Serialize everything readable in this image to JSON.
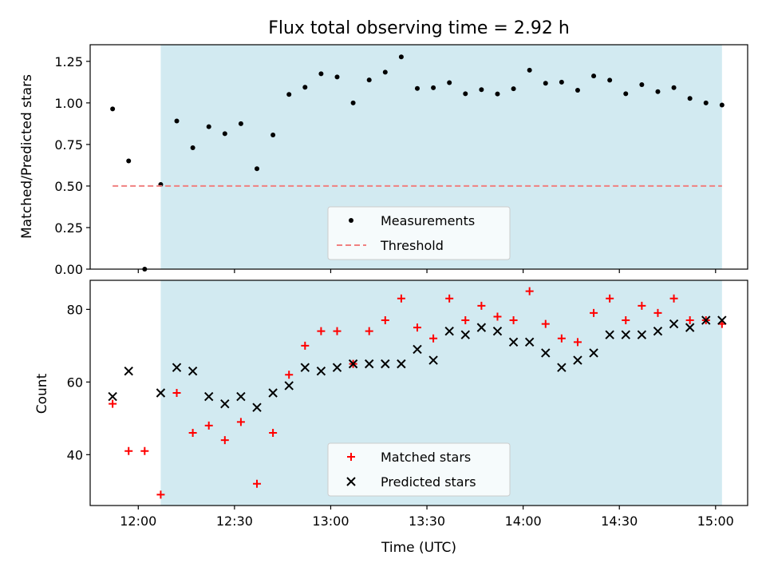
{
  "chart_data": [
    {
      "type": "scatter",
      "title": "Flux total observing time = 2.92 h",
      "ylabel": "Matched/Predicted stars",
      "xlabel": "",
      "ylim": [
        0,
        1.35
      ],
      "yticks": [
        0,
        0.25,
        0.5,
        0.75,
        1.0,
        1.25
      ],
      "ytick_labels": [
        "0.00",
        "0.25",
        "0.50",
        "0.75",
        "1.00",
        "1.25"
      ],
      "shaded_region": {
        "start": "12:07",
        "end": "15:02",
        "color": "#add8e6"
      },
      "legend_position": "bottom-center",
      "series": [
        {
          "name": "Measurements",
          "color": "#000000",
          "marker": "dot",
          "x": [
            "11:52",
            "11:57",
            "12:02",
            "12:07",
            "12:12",
            "12:17",
            "12:22",
            "12:27",
            "12:32",
            "12:37",
            "12:42",
            "12:47",
            "12:52",
            "12:57",
            "13:02",
            "13:07",
            "13:12",
            "13:17",
            "13:22",
            "13:27",
            "13:32",
            "13:37",
            "13:42",
            "13:47",
            "13:52",
            "13:57",
            "14:02",
            "14:07",
            "14:12",
            "14:17",
            "14:22",
            "14:27",
            "14:32",
            "14:37",
            "14:42",
            "14:47",
            "14:52",
            "14:57",
            "15:02"
          ],
          "y": [
            0.964,
            0.651,
            0.0,
            0.509,
            0.891,
            0.73,
            0.857,
            0.815,
            0.875,
            0.604,
            0.807,
            1.051,
            1.094,
            1.175,
            1.156,
            1.0,
            1.138,
            1.185,
            1.277,
            1.087,
            1.091,
            1.122,
            1.055,
            1.08,
            1.054,
            1.085,
            1.197,
            1.118,
            1.125,
            1.076,
            1.162,
            1.137,
            1.055,
            1.11,
            1.068,
            1.092,
            1.027,
            1.0,
            0.987
          ]
        },
        {
          "name": "Threshold",
          "color": "#f08080",
          "style": "dashed",
          "x": [
            "11:52",
            "15:02"
          ],
          "y": [
            0.5,
            0.5
          ]
        }
      ]
    },
    {
      "type": "scatter",
      "title": "",
      "xlabel": "Time (UTC)",
      "ylabel": "Count",
      "ylim": [
        26,
        88
      ],
      "yticks": [
        40,
        60,
        80
      ],
      "ytick_labels": [
        "40",
        "60",
        "80"
      ],
      "xlim": [
        "11:45",
        "15:10"
      ],
      "xticks": [
        "12:00",
        "12:30",
        "13:00",
        "13:30",
        "14:00",
        "14:30",
        "15:00"
      ],
      "shaded_region": {
        "start": "12:07",
        "end": "15:02",
        "color": "#add8e6"
      },
      "legend_position": "bottom-center",
      "series": [
        {
          "name": "Matched stars",
          "color": "#ff0000",
          "marker": "plus",
          "x": [
            "11:52",
            "11:57",
            "12:02",
            "12:07",
            "12:12",
            "12:17",
            "12:22",
            "12:27",
            "12:32",
            "12:37",
            "12:42",
            "12:47",
            "12:52",
            "12:57",
            "13:02",
            "13:07",
            "13:12",
            "13:17",
            "13:22",
            "13:27",
            "13:32",
            "13:37",
            "13:42",
            "13:47",
            "13:52",
            "13:57",
            "14:02",
            "14:07",
            "14:12",
            "14:17",
            "14:22",
            "14:27",
            "14:32",
            "14:37",
            "14:42",
            "14:47",
            "14:52",
            "14:57",
            "15:02"
          ],
          "y": [
            54,
            41,
            41,
            29,
            57,
            46,
            48,
            44,
            49,
            32,
            46,
            62,
            70,
            74,
            74,
            65,
            74,
            77,
            83,
            75,
            72,
            83,
            77,
            81,
            78,
            77,
            85,
            76,
            72,
            71,
            79,
            83,
            77,
            81,
            79,
            83,
            77,
            77,
            76
          ]
        },
        {
          "name": "Predicted stars",
          "color": "#000000",
          "marker": "x",
          "x": [
            "11:52",
            "11:57",
            "12:07",
            "12:12",
            "12:17",
            "12:22",
            "12:27",
            "12:32",
            "12:37",
            "12:42",
            "12:47",
            "12:52",
            "12:57",
            "13:02",
            "13:07",
            "13:12",
            "13:17",
            "13:22",
            "13:27",
            "13:32",
            "13:37",
            "13:42",
            "13:47",
            "13:52",
            "13:57",
            "14:02",
            "14:07",
            "14:12",
            "14:17",
            "14:22",
            "14:27",
            "14:32",
            "14:37",
            "14:42",
            "14:47",
            "14:52",
            "14:57",
            "15:02"
          ],
          "y": [
            56,
            63,
            57,
            64,
            63,
            56,
            54,
            56,
            53,
            57,
            59,
            64,
            63,
            64,
            65,
            65,
            65,
            65,
            69,
            66,
            74,
            73,
            75,
            74,
            71,
            71,
            68,
            64,
            66,
            68,
            73,
            73,
            73,
            74,
            76,
            75,
            77,
            77
          ]
        }
      ]
    }
  ]
}
